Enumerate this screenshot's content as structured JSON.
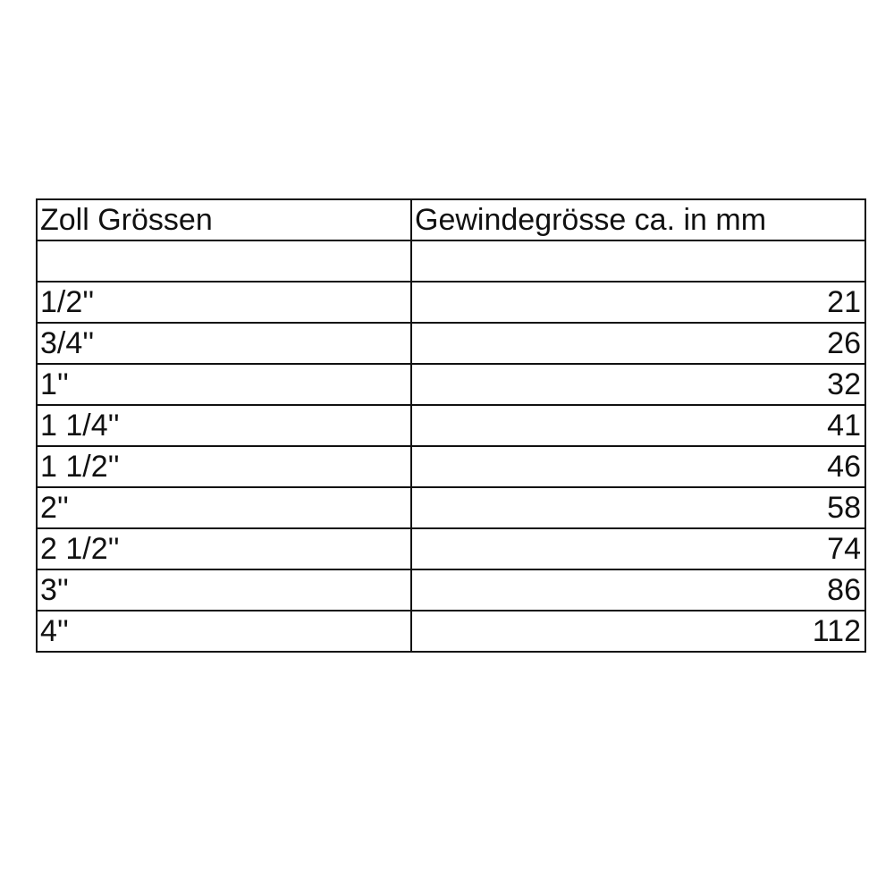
{
  "table": {
    "header": [
      "Zoll Grössen",
      "Gewindegrösse ca. in mm"
    ],
    "rows": [
      [
        "1/2''",
        21
      ],
      [
        "3/4''",
        26
      ],
      [
        "1''",
        32
      ],
      [
        "1 1/4''",
        41
      ],
      [
        "1 1/2''",
        46
      ],
      [
        "2''",
        58
      ],
      [
        "2 1/2''",
        74
      ],
      [
        "3''",
        86
      ],
      [
        "4''",
        112
      ]
    ]
  }
}
